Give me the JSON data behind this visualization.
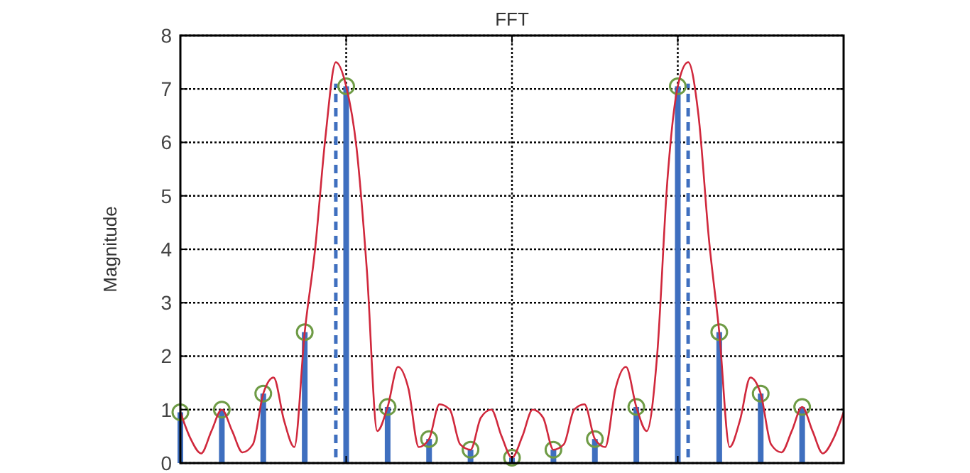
{
  "chart_data": {
    "type": "bar",
    "title": "FFT",
    "ylabel": "Magnitude",
    "categories": [
      null,
      null,
      null,
      null,
      null,
      null,
      null,
      null,
      null,
      null,
      null,
      null,
      null,
      null,
      null,
      null,
      null,
      null,
      null,
      null,
      null,
      null,
      null,
      null,
      null,
      null,
      null,
      null,
      null,
      null,
      null,
      null,
      null,
      null,
      null,
      null,
      null,
      null,
      null,
      null,
      null,
      null,
      null,
      null,
      null,
      null,
      null,
      null,
      null,
      null,
      null,
      null,
      null,
      null,
      null,
      null,
      null,
      null,
      null,
      null,
      null,
      null,
      null,
      null,
      null
    ],
    "ylim": [
      0,
      8
    ],
    "yticks": [
      0,
      1,
      2,
      3,
      4,
      5,
      6,
      7,
      8
    ],
    "grid": true,
    "series": [
      {
        "type": "line",
        "color": "#d0283c",
        "line_style": "solid",
        "values": [
          0.95,
          0.45,
          0.18,
          0.6,
          1.0,
          0.6,
          0.2,
          0.35,
          1.3,
          1.6,
          0.8,
          0.3,
          2.45,
          4.0,
          6.1,
          7.5,
          7.05,
          5.9,
          3.6,
          0.6,
          1.05,
          1.8,
          1.4,
          0.3,
          0.45,
          1.1,
          1.0,
          0.35,
          0.25,
          0.85,
          1.0,
          0.5,
          0.1,
          0.5,
          1.0,
          0.85,
          0.25,
          0.35,
          1.0,
          1.1,
          0.45,
          0.3,
          1.4,
          1.8,
          1.05,
          0.6,
          2.0,
          5.3,
          7.05,
          7.5,
          6.5,
          4.2,
          2.45,
          0.3,
          0.8,
          1.6,
          1.3,
          0.35,
          0.2,
          0.6,
          1.05,
          0.6,
          0.18,
          0.45,
          0.95
        ]
      },
      {
        "color": "#3f6fbf",
        "line_style": "dashed",
        "values": [
          null,
          null,
          null,
          null,
          null,
          null,
          null,
          null,
          null,
          null,
          null,
          null,
          null,
          null,
          null,
          7.1,
          null,
          null,
          null,
          null,
          null,
          null,
          null,
          null,
          null,
          null,
          null,
          null,
          null,
          null,
          null,
          null,
          null,
          null,
          null,
          null,
          null,
          null,
          null,
          null,
          null,
          null,
          null,
          null,
          null,
          null,
          null,
          null,
          null,
          7.1,
          null,
          null,
          null,
          null,
          null,
          null,
          null,
          null,
          null,
          null,
          null,
          null,
          null,
          null,
          null
        ]
      },
      {
        "color": "#3f6fbf",
        "values": [
          0.95,
          null,
          null,
          null,
          1,
          null,
          null,
          null,
          1.3,
          null,
          null,
          null,
          2.45,
          null,
          null,
          null,
          7.05,
          null,
          null,
          null,
          1.05,
          null,
          null,
          null,
          0.45,
          null,
          null,
          null,
          0.25,
          null,
          null,
          null,
          0.1,
          null,
          null,
          null,
          0.25,
          null,
          null,
          null,
          0.45,
          null,
          null,
          null,
          1.05,
          null,
          null,
          null,
          7.05,
          null,
          null,
          null,
          2.45,
          null,
          null,
          null,
          1.3,
          null,
          null,
          null,
          1.05,
          null,
          null,
          null,
          null
        ]
      },
      {
        "type": "scatter",
        "color": "#6e9b45",
        "marker": "circle",
        "values": [
          0.95,
          null,
          null,
          null,
          1,
          null,
          null,
          null,
          1.3,
          null,
          null,
          null,
          2.45,
          null,
          null,
          null,
          7.05,
          null,
          null,
          null,
          1.05,
          null,
          null,
          null,
          0.45,
          null,
          null,
          null,
          0.25,
          null,
          null,
          null,
          0.1,
          null,
          null,
          null,
          0.25,
          null,
          null,
          null,
          0.45,
          null,
          null,
          null,
          1.05,
          null,
          null,
          null,
          7.05,
          null,
          null,
          null,
          2.45,
          null,
          null,
          null,
          1.3,
          null,
          null,
          null,
          1.05,
          null,
          null,
          null,
          null
        ]
      }
    ]
  }
}
